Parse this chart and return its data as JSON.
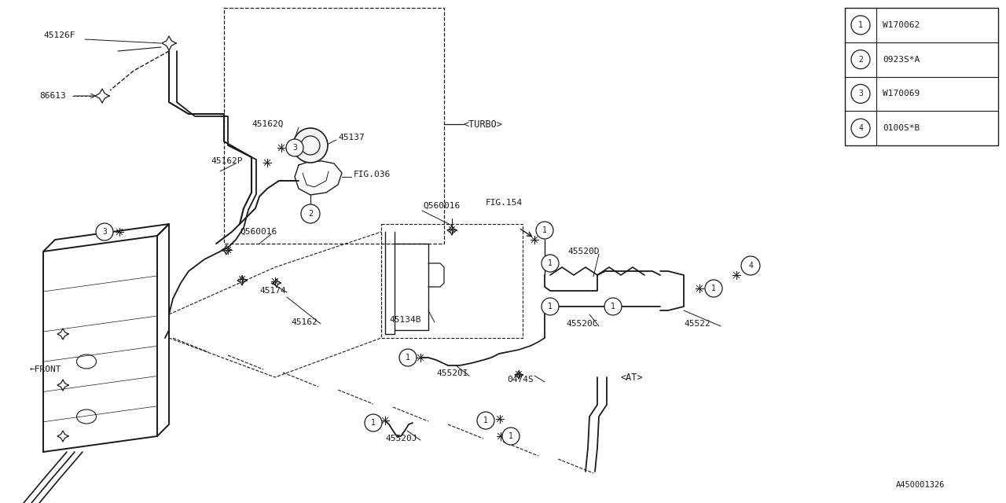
{
  "bg_color": "#ffffff",
  "line_color": "#1a1a1a",
  "legend_items": [
    {
      "num": "1",
      "code": "W170062"
    },
    {
      "num": "2",
      "code": "0923S*A"
    },
    {
      "num": "3",
      "code": "W170069"
    },
    {
      "num": "4",
      "code": "0100S*B"
    }
  ]
}
